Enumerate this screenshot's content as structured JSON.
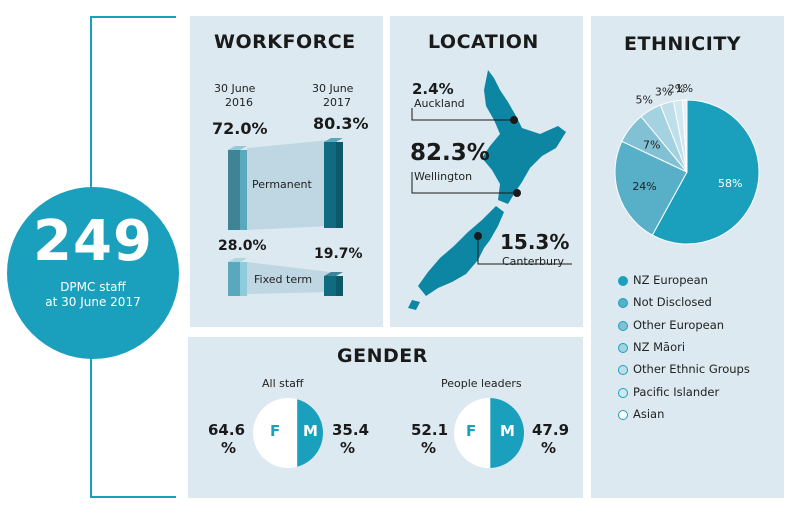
{
  "headcount": {
    "number": "249",
    "line1": "DPMC staff",
    "line2": "at 30 June 2017"
  },
  "workforce": {
    "title": "WORKFORCE",
    "date_2016": [
      "30 June",
      "2016"
    ],
    "date_2017": [
      "30 June",
      "2017"
    ],
    "permanent": {
      "label": "Permanent",
      "v2016": "72.0%",
      "v2017": "80.3%"
    },
    "fixed": {
      "label": "Fixed term",
      "v2016": "28.0%",
      "v2017": "19.7%"
    }
  },
  "location": {
    "title": "LOCATION",
    "auckland": {
      "value": "2.4%",
      "label": "Auckland"
    },
    "wellington": {
      "value": "82.3%",
      "label": "Wellington"
    },
    "canterbury": {
      "value": "15.3%",
      "label": "Canterbury"
    }
  },
  "gender": {
    "title": "GENDER",
    "all_staff": {
      "label": "All staff",
      "f": "64.6",
      "m": "35.4",
      "pct": "%"
    },
    "leaders": {
      "label": "People leaders",
      "f": "52.1",
      "m": "47.9",
      "pct": "%"
    },
    "f_letter": "F",
    "m_letter": "M"
  },
  "chart_data": [
    {
      "type": "bar",
      "title": "WORKFORCE",
      "categories": [
        "30 June 2016",
        "30 June 2017"
      ],
      "series": [
        {
          "name": "Permanent",
          "values": [
            72.0,
            80.3
          ]
        },
        {
          "name": "Fixed term",
          "values": [
            28.0,
            19.7
          ]
        }
      ]
    },
    {
      "type": "pie",
      "title": "ETHNICITY",
      "labels": [
        "NZ European",
        "Not Disclosed",
        "Other European",
        "NZ Māori",
        "Other Ethnic Groups",
        "Pacific Islander",
        "Asian"
      ],
      "values": [
        58,
        24,
        7,
        5,
        3,
        2,
        1
      ],
      "value_labels": [
        "58%",
        "24%",
        "7%",
        "5%",
        "3%",
        "2%",
        "1%"
      ],
      "colors": [
        "#1aa0bd",
        "#58b0c8",
        "#82c1d4",
        "#a4d2e0",
        "#bedfe9",
        "#d2e8f0",
        "#e6f2f7"
      ],
      "legend": "bottom"
    },
    {
      "type": "pie",
      "title": "All staff",
      "labels": [
        "F",
        "M"
      ],
      "values": [
        64.6,
        35.4
      ]
    },
    {
      "type": "pie",
      "title": "People leaders",
      "labels": [
        "F",
        "M"
      ],
      "values": [
        52.1,
        47.9
      ]
    }
  ]
}
